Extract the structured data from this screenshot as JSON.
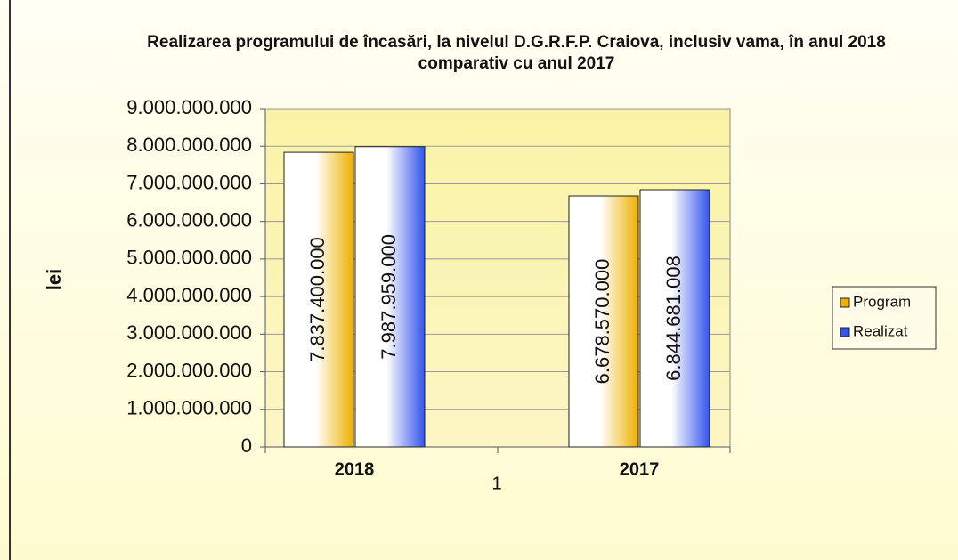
{
  "chart_data": {
    "type": "bar",
    "title": "Realizarea programului de încasări, la nivelul D.G.R.F.P. Craiova, inclusiv vama, în anul 2018 comparativ cu anul 2017",
    "y_label": "lei",
    "x_label": "1",
    "categories": [
      "2018",
      "2017"
    ],
    "series": [
      {
        "name": "Program",
        "color": "#f0b000",
        "values": [
          7837400000,
          6678570000
        ],
        "value_labels": [
          "7.837.400.000",
          "6.678.570.000"
        ]
      },
      {
        "name": "Realizat",
        "color": "#3355ee",
        "values": [
          7987959000,
          6844681008
        ],
        "value_labels": [
          "7.987.959.000",
          "6.844.681.008"
        ]
      }
    ],
    "ylim": [
      0,
      9000000000
    ],
    "yticks": [
      0,
      {
        "value": 1000000000,
        "label": "1.000.000.000"
      },
      {
        "value": 2000000000,
        "label": "2.000.000.000"
      },
      {
        "value": 3000000000,
        "label": "3.000.000.000"
      },
      {
        "value": 4000000000,
        "label": "4.000.000.000"
      },
      {
        "value": 5000000000,
        "label": "5.000.000.000"
      },
      {
        "value": 6000000000,
        "label": "6.000.000.000"
      },
      {
        "value": 7000000000,
        "label": "7.000.000.000"
      },
      {
        "value": 8000000000,
        "label": "8.000.000.000"
      },
      {
        "value": 9000000000,
        "label": "9.000.000.000"
      }
    ],
    "grid": true,
    "legend": "right"
  }
}
